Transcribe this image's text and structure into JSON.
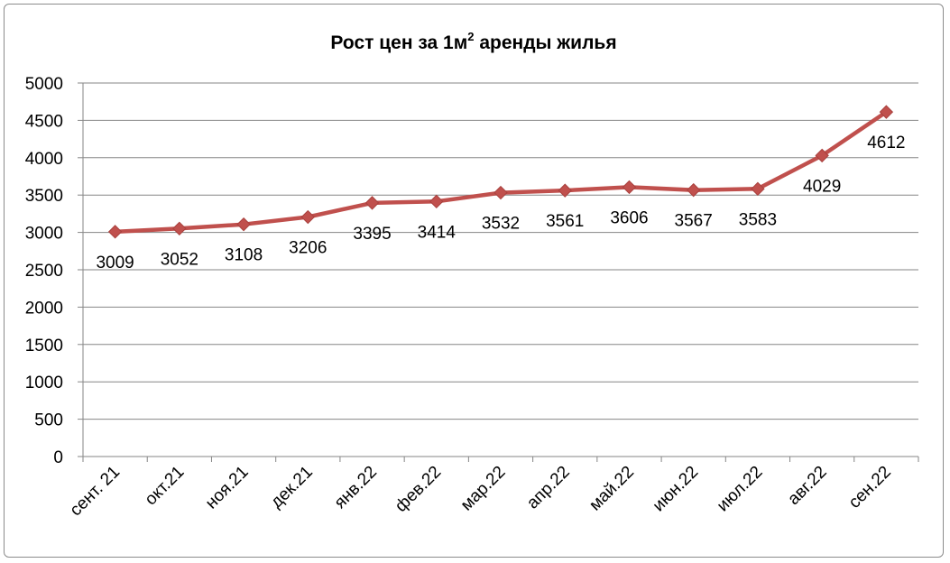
{
  "chart_data": {
    "type": "line",
    "title": "Рост цен за 1м",
    "title_superscript": "2",
    "title_suffix": " аренды жилья",
    "categories": [
      "сент. 21",
      "окт.21",
      "ноя.21",
      "дек.21",
      "янв.22",
      "фев.22",
      "мар.22",
      "апр.22",
      "май.22",
      "июн.22",
      "июл.22",
      "авг.22",
      "сен.22"
    ],
    "series": [
      {
        "values": [
          3009,
          3052,
          3108,
          3206,
          3395,
          3414,
          3532,
          3561,
          3606,
          3567,
          3583,
          4029,
          4612
        ]
      }
    ],
    "ylim": [
      0,
      5000
    ],
    "yticks": [
      0,
      500,
      1000,
      1500,
      2000,
      2500,
      3000,
      3500,
      4000,
      4500,
      5000
    ],
    "grid": true,
    "legend": "none",
    "colors": {
      "line": "#C0504D",
      "marker": "#C0504D"
    },
    "marker": "diamond-icon"
  }
}
